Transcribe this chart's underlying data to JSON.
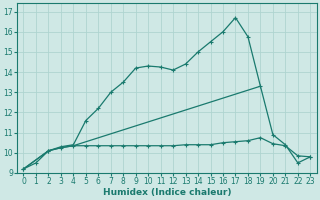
{
  "xlabel": "Humidex (Indice chaleur)",
  "background_color": "#cfe8e5",
  "line_color": "#1a7a6e",
  "grid_color": "#afd4d0",
  "xlim": [
    -0.5,
    23.5
  ],
  "ylim": [
    9,
    17.4
  ],
  "yticks": [
    9,
    10,
    11,
    12,
    13,
    14,
    15,
    16,
    17
  ],
  "xticks": [
    0,
    1,
    2,
    3,
    4,
    5,
    6,
    7,
    8,
    9,
    10,
    11,
    12,
    13,
    14,
    15,
    16,
    17,
    18,
    19,
    20,
    21,
    22,
    23
  ],
  "series1_x": [
    0,
    1,
    2,
    3,
    4,
    5,
    6,
    7,
    8,
    9,
    10,
    11,
    12,
    13,
    14,
    15,
    16,
    17,
    18,
    19,
    20,
    21,
    22,
    23
  ],
  "series1_y": [
    9.2,
    9.5,
    10.1,
    10.3,
    10.4,
    11.6,
    12.2,
    13.0,
    13.5,
    14.2,
    14.3,
    14.25,
    14.1,
    14.4,
    15.0,
    15.5,
    16.0,
    16.7,
    15.75,
    13.3,
    10.9,
    10.4,
    9.5,
    9.8
  ],
  "series2_x": [
    0,
    2,
    3,
    4,
    5,
    6,
    7,
    8,
    9,
    10,
    11,
    12,
    13,
    14,
    15,
    16,
    17,
    18,
    19,
    20,
    21,
    22,
    23
  ],
  "series2_y": [
    9.2,
    10.1,
    10.25,
    10.35,
    10.35,
    10.35,
    10.35,
    10.35,
    10.35,
    10.35,
    10.35,
    10.35,
    10.4,
    10.4,
    10.4,
    10.5,
    10.55,
    10.6,
    10.75,
    10.45,
    10.35,
    9.85,
    9.8
  ],
  "series3_x": [
    0,
    2,
    3,
    4,
    19
  ],
  "series3_y": [
    9.2,
    10.1,
    10.25,
    10.35,
    13.3
  ]
}
